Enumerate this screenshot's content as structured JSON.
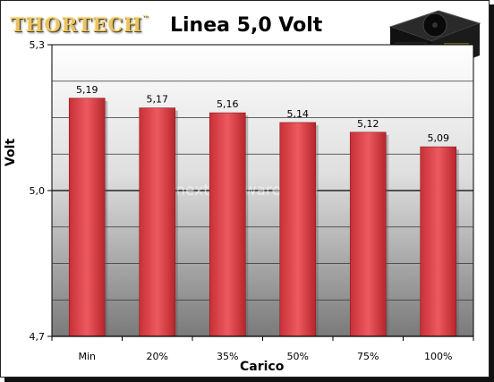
{
  "logo_text": "THORTECH",
  "logo_mark": "™",
  "chart_data": {
    "type": "bar",
    "title": "Linea 5,0 Volt",
    "xlabel": "Carico",
    "ylabel": "Volt",
    "categories": [
      "Min",
      "20%",
      "35%",
      "50%",
      "75%",
      "100%"
    ],
    "values": [
      5.19,
      5.17,
      5.16,
      5.14,
      5.12,
      5.09
    ],
    "value_labels": [
      "5,19",
      "5,17",
      "5,16",
      "5,14",
      "5,12",
      "5,09"
    ],
    "ylim": [
      4.7,
      5.3
    ],
    "yticks": [
      4.7,
      5.0,
      5.3
    ],
    "ytick_labels": [
      "4,7",
      "5,0",
      "5,3"
    ],
    "grid": true,
    "bar_color": "#e0474c",
    "watermark": "nexthardware.com"
  }
}
